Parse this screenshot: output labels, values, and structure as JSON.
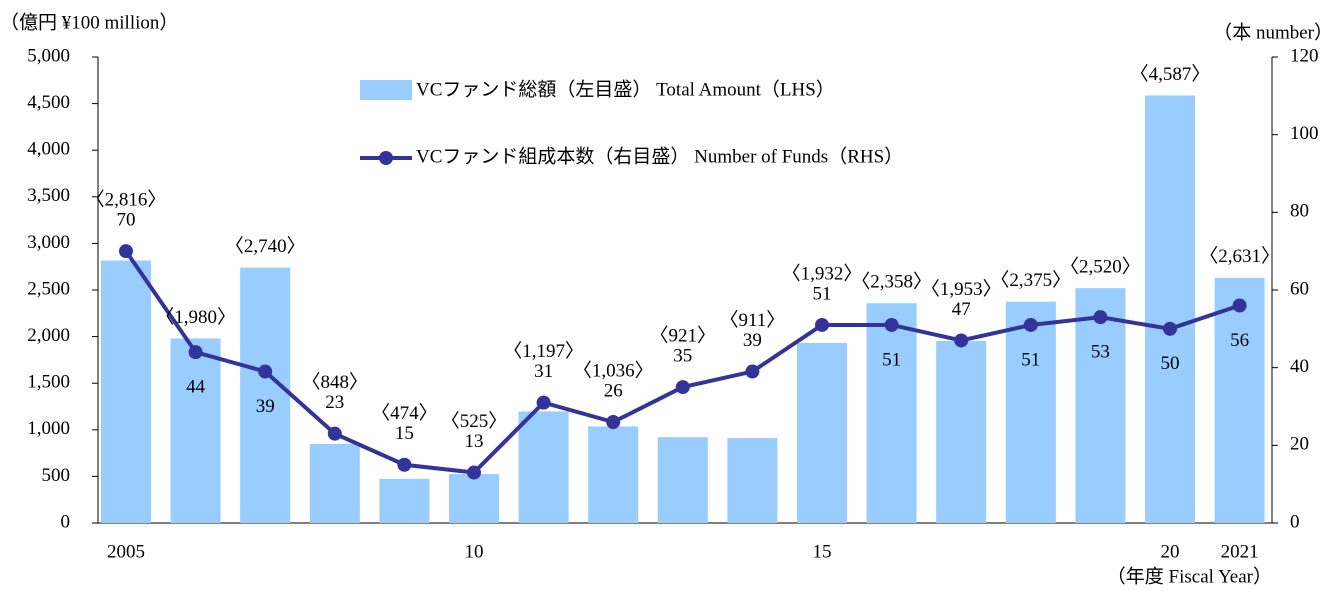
{
  "chart_data": {
    "type": "bar_line",
    "y_label": "（億円 ¥100 million）",
    "y2_label": "（本 number）",
    "x_label": "（年度 Fiscal Year）",
    "categories": [
      "2005",
      null,
      null,
      null,
      null,
      "10",
      null,
      null,
      null,
      null,
      "15",
      null,
      null,
      null,
      null,
      "20",
      "2021"
    ],
    "series": [
      {
        "name": "VCファンド総額（左目盛） Total Amount（LHS）",
        "type": "bar",
        "color": "#99ccff",
        "values": [
          2816,
          1980,
          2740,
          848,
          474,
          525,
          1197,
          1036,
          921,
          911,
          1932,
          2358,
          1953,
          2375,
          2520,
          4587,
          2631
        ],
        "value_labels": [
          "〈2,816〉",
          "〈1,980〉",
          "〈2,740〉",
          "〈848〉",
          "〈474〉",
          "〈525〉",
          "〈1,197〉",
          "〈1,036〉",
          "〈921〉",
          "〈911〉",
          "〈1,932〉",
          "〈2,358〉",
          "〈1,953〉",
          "〈2,375〉",
          "〈2,520〉",
          "〈4,587〉",
          "〈2,631〉"
        ]
      },
      {
        "name": "VCファンド組成本数（右目盛） Number of Funds（RHS）",
        "type": "line",
        "axis": "y2",
        "color": "#333399",
        "values": [
          70,
          44,
          39,
          23,
          15,
          13,
          31,
          26,
          35,
          39,
          51,
          51,
          47,
          51,
          53,
          50,
          56
        ]
      }
    ],
    "ylim": [
      0,
      5000
    ],
    "yticks": [
      0,
      500,
      {
        "value": 1000,
        "label": "1,000"
      },
      {
        "value": 1500,
        "label": "1,500"
      },
      {
        "value": 2000,
        "label": "2,000"
      },
      {
        "value": 2500,
        "label": "2,500"
      },
      {
        "value": 3000,
        "label": "3,000"
      },
      {
        "value": 3500,
        "label": "3,500"
      },
      {
        "value": 4000,
        "label": "4,000"
      },
      {
        "value": 4500,
        "label": "4,500"
      },
      {
        "value": 5000,
        "label": "5,000"
      }
    ],
    "y2lim": [
      0,
      120
    ],
    "y2ticks": [
      0,
      20,
      40,
      60,
      80,
      100,
      120
    ]
  }
}
